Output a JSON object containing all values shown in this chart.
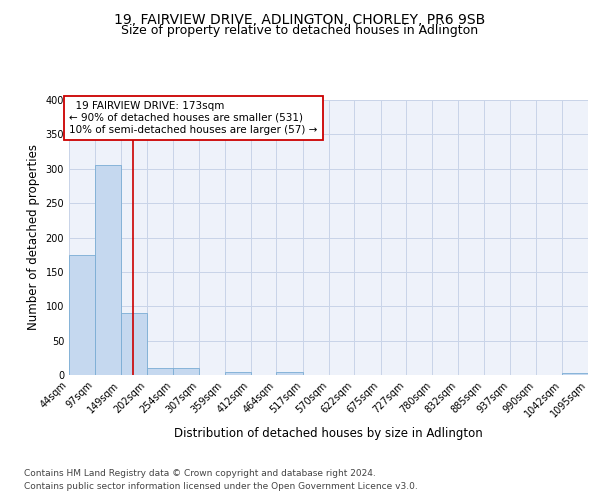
{
  "title": "19, FAIRVIEW DRIVE, ADLINGTON, CHORLEY, PR6 9SB",
  "subtitle": "Size of property relative to detached houses in Adlington",
  "xlabel": "Distribution of detached houses by size in Adlington",
  "ylabel": "Number of detached properties",
  "footer1": "Contains HM Land Registry data © Crown copyright and database right 2024.",
  "footer2": "Contains public sector information licensed under the Open Government Licence v3.0.",
  "annotation_line1": "19 FAIRVIEW DRIVE: 173sqm",
  "annotation_line2": "← 90% of detached houses are smaller (531)",
  "annotation_line3": "10% of semi-detached houses are larger (57) →",
  "bar_edges": [
    44,
    97,
    149,
    202,
    254,
    307,
    359,
    412,
    464,
    517,
    570,
    622,
    675,
    727,
    780,
    832,
    885,
    937,
    990,
    1042,
    1095
  ],
  "bar_heights": [
    175,
    305,
    90,
    10,
    10,
    0,
    5,
    0,
    5,
    0,
    0,
    0,
    0,
    0,
    0,
    0,
    0,
    0,
    0,
    3,
    0
  ],
  "bar_color": "#c5d8ef",
  "bar_edge_color": "#7aadd4",
  "vline_x": 173,
  "vline_color": "#cc0000",
  "ylim": [
    0,
    400
  ],
  "yticks": [
    0,
    50,
    100,
    150,
    200,
    250,
    300,
    350,
    400
  ],
  "grid_color": "#c8d4e8",
  "bg_color": "#eef2fa",
  "title_fontsize": 10,
  "subtitle_fontsize": 9,
  "tick_fontsize": 7,
  "label_fontsize": 8.5,
  "footer_fontsize": 6.5,
  "ann_fontsize": 7.5
}
